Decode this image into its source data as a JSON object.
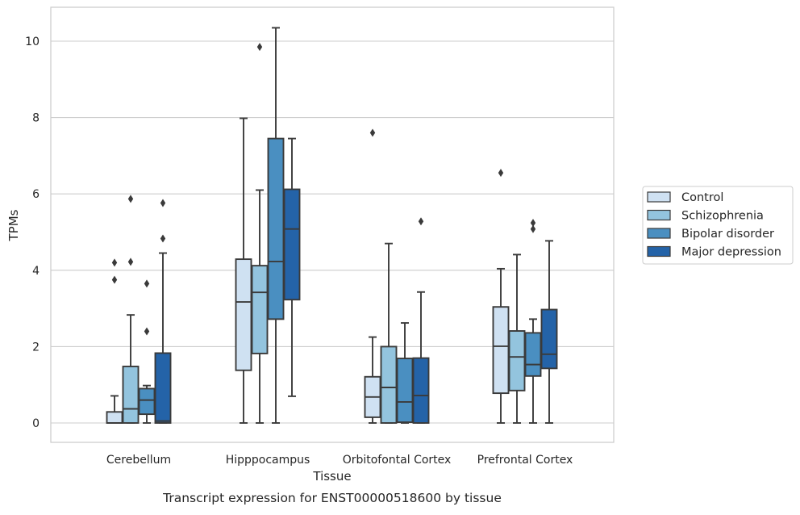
{
  "caption": "Transcript expression for ENST00000518600 by tissue",
  "chart_data": {
    "type": "box",
    "title": "",
    "xlabel": "Tissue",
    "ylabel": "TPMs",
    "ylim": [
      -0.5,
      10.85
    ],
    "yticks": [
      0,
      2,
      4,
      6,
      8,
      10
    ],
    "grid": "horizontal",
    "legend_position": "right",
    "categories": [
      "Cerebellum",
      "Hipppocampus",
      "Orbitofontal Cortex",
      "Prefrontal Cortex"
    ],
    "series": [
      {
        "name": "Control",
        "color": "#cfe1f2",
        "boxes": [
          {
            "whislo": 0,
            "q1": 0,
            "med": 0,
            "q3": 0.29,
            "whishi": 0.71,
            "fliers": [
              3.75,
              4.2
            ]
          },
          {
            "whislo": 0,
            "q1": 1.38,
            "med": 3.17,
            "q3": 4.29,
            "whishi": 7.98,
            "fliers": []
          },
          {
            "whislo": 0,
            "q1": 0.15,
            "med": 0.68,
            "q3": 1.21,
            "whishi": 2.25,
            "fliers": [
              7.6
            ]
          },
          {
            "whislo": 0,
            "q1": 0.78,
            "med": 2.01,
            "q3": 3.04,
            "whishi": 4.04,
            "fliers": [
              6.55
            ]
          }
        ]
      },
      {
        "name": "Schizophrenia",
        "color": "#93c4de",
        "boxes": [
          {
            "whislo": 0,
            "q1": 0,
            "med": 0.37,
            "q3": 1.48,
            "whishi": 2.83,
            "fliers": [
              4.22,
              5.87
            ]
          },
          {
            "whislo": 0,
            "q1": 1.82,
            "med": 3.42,
            "q3": 4.12,
            "whishi": 6.1,
            "fliers": [
              9.85
            ]
          },
          {
            "whislo": 0,
            "q1": 0,
            "med": 0.93,
            "q3": 2.0,
            "whishi": 4.7,
            "fliers": []
          },
          {
            "whislo": 0,
            "q1": 0.85,
            "med": 1.73,
            "q3": 2.41,
            "whishi": 4.41,
            "fliers": []
          }
        ]
      },
      {
        "name": "Bipolar disorder",
        "color": "#4a8fc1",
        "boxes": [
          {
            "whislo": 0,
            "q1": 0.23,
            "med": 0.6,
            "q3": 0.9,
            "whishi": 0.98,
            "fliers": [
              3.65,
              2.4
            ]
          },
          {
            "whislo": 0,
            "q1": 2.72,
            "med": 4.23,
            "q3": 7.45,
            "whishi": 10.35,
            "fliers": []
          },
          {
            "whislo": 0,
            "q1": 0.02,
            "med": 0.55,
            "q3": 1.69,
            "whishi": 2.62,
            "fliers": []
          },
          {
            "whislo": 0,
            "q1": 1.23,
            "med": 1.53,
            "q3": 2.36,
            "whishi": 2.72,
            "fliers": [
              5.08,
              5.24
            ]
          }
        ]
      },
      {
        "name": "Major depression",
        "color": "#2463a8",
        "boxes": [
          {
            "whislo": 0,
            "q1": 0,
            "med": 0.05,
            "q3": 1.83,
            "whishi": 4.45,
            "fliers": [
              4.83,
              5.76
            ]
          },
          {
            "whislo": 0.7,
            "q1": 3.23,
            "med": 5.08,
            "q3": 6.12,
            "whishi": 7.45,
            "fliers": []
          },
          {
            "whislo": 0,
            "q1": 0,
            "med": 0.72,
            "q3": 1.7,
            "whishi": 3.43,
            "fliers": [
              5.28
            ]
          },
          {
            "whislo": 0,
            "q1": 1.43,
            "med": 1.8,
            "q3": 2.97,
            "whishi": 4.77,
            "fliers": []
          }
        ]
      }
    ]
  }
}
